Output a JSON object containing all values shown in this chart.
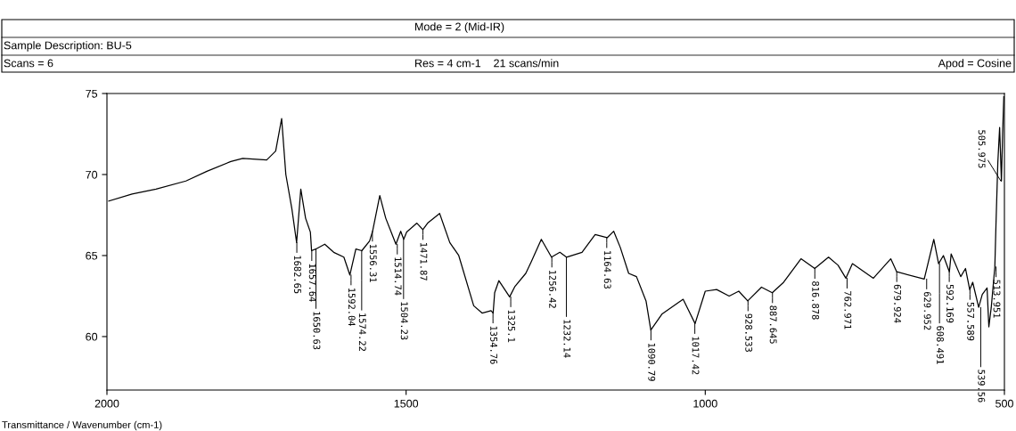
{
  "chart_data": {
    "type": "line",
    "xlabel": "Transmittance / Wavenumber (cm-1)",
    "x": [
      1997,
      1958,
      1918,
      1868,
      1833,
      1793,
      1773,
      1733,
      1718,
      1708,
      1701,
      1691,
      1683,
      1676,
      1668,
      1660,
      1658,
      1651,
      1636,
      1621,
      1604,
      1594,
      1584,
      1574,
      1561,
      1556,
      1544,
      1534,
      1517,
      1509,
      1504,
      1499,
      1482,
      1472,
      1464,
      1444,
      1427,
      1412,
      1387,
      1373,
      1358,
      1354.5,
      1352,
      1345,
      1327,
      1318,
      1300,
      1291,
      1274,
      1257,
      1243,
      1232,
      1206,
      1184,
      1164,
      1153,
      1142,
      1128,
      1115,
      1099,
      1091,
      1072,
      1037,
      1029,
      1017,
      1000,
      981,
      960,
      944,
      929,
      906,
      888,
      869,
      840,
      817,
      794,
      778,
      765,
      754,
      719,
      690,
      680,
      634,
      618,
      610,
      602,
      592,
      589,
      573,
      565,
      558,
      553,
      543,
      537,
      529,
      526,
      522,
      516,
      514,
      511,
      508,
      505,
      503,
      501
    ],
    "series": [
      {
        "color": "#000000",
        "values": [
          68.36,
          68.8,
          69.1,
          69.6,
          70.2,
          70.8,
          71.0,
          70.9,
          71.45,
          73.45,
          70.0,
          67.9,
          65.8,
          69.1,
          67.3,
          66.45,
          65.3,
          65.4,
          65.7,
          65.2,
          64.9,
          63.8,
          65.4,
          65.3,
          65.9,
          66.5,
          68.7,
          67.3,
          65.7,
          66.5,
          66.0,
          66.45,
          67.0,
          66.6,
          67.0,
          67.6,
          65.8,
          65.0,
          61.9,
          61.45,
          61.6,
          61.45,
          62.7,
          63.45,
          62.45,
          63.1,
          63.9,
          64.6,
          66.0,
          64.9,
          65.2,
          64.9,
          65.2,
          66.3,
          66.1,
          66.5,
          65.5,
          63.9,
          63.7,
          62.2,
          60.4,
          61.4,
          62.3,
          61.7,
          60.8,
          62.8,
          62.9,
          62.5,
          62.8,
          62.2,
          63.05,
          62.7,
          63.35,
          64.8,
          64.2,
          64.9,
          64.4,
          63.6,
          64.5,
          63.6,
          64.8,
          64.0,
          63.55,
          66.0,
          64.5,
          65.0,
          64.0,
          65.1,
          63.7,
          64.2,
          62.9,
          63.35,
          61.8,
          62.6,
          63.0,
          60.6,
          61.8,
          64.3,
          67.05,
          70.75,
          72.9,
          69.6,
          72.5,
          74.8
        ]
      }
    ],
    "xlim": [
      2000,
      500
    ],
    "xticks": [
      2000,
      1500,
      1000,
      500
    ],
    "ylim": [
      56.7,
      75
    ],
    "yticks": [
      60,
      65,
      70,
      75
    ],
    "grid": false,
    "marker": "none",
    "line_style": "solid",
    "annotations": [
      "Sample Description: BU-5",
      "Scans = 6",
      "Mode = 2 (Mid-IR)",
      "Res = 4 cm-1    21 scans/min",
      "Apod = Cosine",
      {
        "text": "1682.65",
        "x": 1682.65,
        "y": 65.8
      },
      {
        "text": "1657.64",
        "x": 1657.64,
        "y": 65.3
      },
      {
        "text": "1650.63",
        "x": 1650.63,
        "y": 65.4
      },
      {
        "text": "1592.04",
        "x": 1592.04,
        "y": 63.8
      },
      {
        "text": "1574.22",
        "x": 1574.22,
        "y": 65.3
      },
      {
        "text": "1556.31",
        "x": 1556.31,
        "y": 66.5
      },
      {
        "text": "1514.74",
        "x": 1514.74,
        "y": 65.7
      },
      {
        "text": "1504.23",
        "x": 1504.23,
        "y": 66.0
      },
      {
        "text": "1471.87",
        "x": 1471.87,
        "y": 66.6
      },
      {
        "text": "1354.76",
        "x": 1354.76,
        "y": 61.45
      },
      {
        "text": "1325.1",
        "x": 1325.1,
        "y": 62.45
      },
      {
        "text": "1256.42",
        "x": 1256.42,
        "y": 64.9
      },
      {
        "text": "1232.14",
        "x": 1232.14,
        "y": 64.9
      },
      {
        "text": "1164.63",
        "x": 1164.63,
        "y": 66.1
      },
      {
        "text": "1090.79",
        "x": 1090.79,
        "y": 60.4
      },
      {
        "text": "1017.42",
        "x": 1017.42,
        "y": 60.8
      },
      {
        "text": "928.533",
        "x": 928.533,
        "y": 62.2
      },
      {
        "text": "887.645",
        "x": 887.645,
        "y": 62.7
      },
      {
        "text": "816.878",
        "x": 816.878,
        "y": 64.2
      },
      {
        "text": "762.971",
        "x": 762.971,
        "y": 63.6
      },
      {
        "text": "679.924",
        "x": 679.924,
        "y": 64.0
      },
      {
        "text": "629.952",
        "x": 629.952,
        "y": 63.55
      },
      {
        "text": "608.491",
        "x": 608.491,
        "y": 64.5
      },
      {
        "text": "592.169",
        "x": 592.169,
        "y": 64.0
      },
      {
        "text": "557.589",
        "x": 557.589,
        "y": 62.9
      },
      {
        "text": "539.56",
        "x": 539.56,
        "y": 61.8
      },
      {
        "text": "513.951",
        "x": 513.951,
        "y": 64.3
      },
      {
        "text": "505.975",
        "x": 505.975,
        "y": 69.6
      }
    ]
  }
}
